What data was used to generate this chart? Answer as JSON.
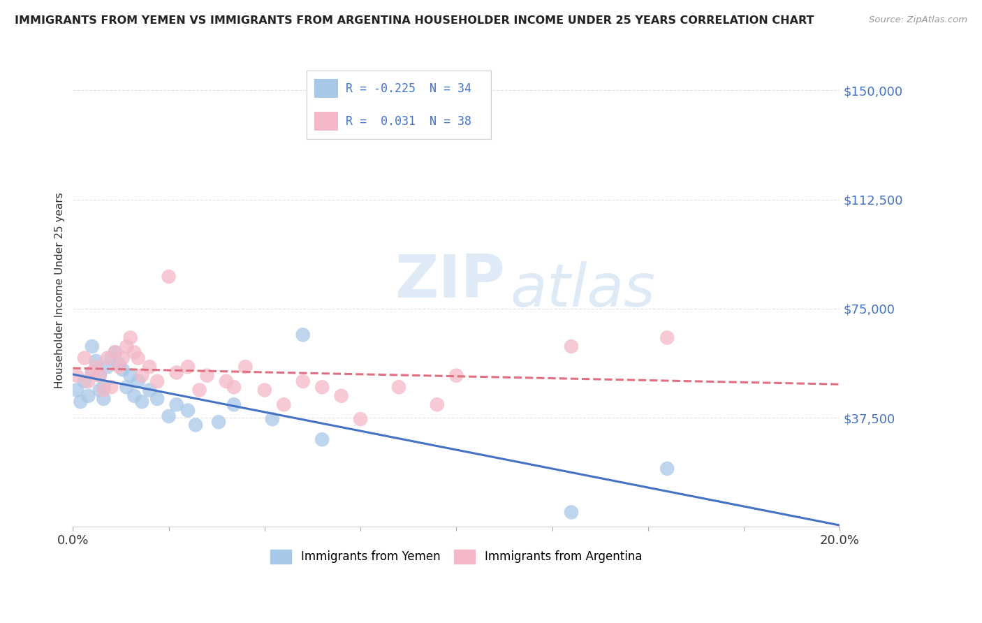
{
  "title": "IMMIGRANTS FROM YEMEN VS IMMIGRANTS FROM ARGENTINA HOUSEHOLDER INCOME UNDER 25 YEARS CORRELATION CHART",
  "source": "Source: ZipAtlas.com",
  "ylabel": "Householder Income Under 25 years",
  "xlim": [
    0.0,
    0.2
  ],
  "ylim": [
    0,
    162500
  ],
  "yticks": [
    0,
    37500,
    75000,
    112500,
    150000
  ],
  "ytick_labels": [
    "",
    "$37,500",
    "$75,000",
    "$112,500",
    "$150,000"
  ],
  "xticks": [
    0.0,
    0.025,
    0.05,
    0.075,
    0.1,
    0.125,
    0.15,
    0.175,
    0.2
  ],
  "xtick_labels": [
    "0.0%",
    "",
    "",
    "",
    "",
    "",
    "",
    "",
    "20.0%"
  ],
  "background_color": "#ffffff",
  "grid_color": "#e0e0e0",
  "yemen_color": "#a8c8e8",
  "argentina_color": "#f4b8c8",
  "yemen_R": -0.225,
  "yemen_N": 34,
  "argentina_R": 0.031,
  "argentina_N": 38,
  "watermark_zip": "ZIP",
  "watermark_atlas": "atlas",
  "yemen_line_color": "#4472c4",
  "argentina_line_color": "#e07080",
  "legend_label_yemen": "Immigrants from Yemen",
  "legend_label_argentina": "Immigrants from Argentina",
  "yemen_x": [
    0.001,
    0.002,
    0.003,
    0.004,
    0.005,
    0.005,
    0.006,
    0.007,
    0.007,
    0.008,
    0.008,
    0.009,
    0.01,
    0.011,
    0.012,
    0.013,
    0.014,
    0.015,
    0.016,
    0.017,
    0.018,
    0.02,
    0.022,
    0.025,
    0.027,
    0.03,
    0.032,
    0.038,
    0.042,
    0.052,
    0.065,
    0.13,
    0.155,
    0.06
  ],
  "yemen_y": [
    47000,
    43000,
    50000,
    45000,
    53000,
    62000,
    57000,
    52000,
    47000,
    48000,
    44000,
    55000,
    58000,
    60000,
    56000,
    54000,
    48000,
    52000,
    45000,
    50000,
    43000,
    47000,
    44000,
    38000,
    42000,
    40000,
    35000,
    36000,
    42000,
    37000,
    30000,
    5000,
    20000,
    66000
  ],
  "argentina_x": [
    0.001,
    0.003,
    0.004,
    0.005,
    0.006,
    0.007,
    0.008,
    0.009,
    0.01,
    0.011,
    0.012,
    0.013,
    0.014,
    0.015,
    0.016,
    0.017,
    0.018,
    0.02,
    0.022,
    0.025,
    0.027,
    0.03,
    0.033,
    0.035,
    0.04,
    0.042,
    0.045,
    0.05,
    0.055,
    0.06,
    0.065,
    0.07,
    0.075,
    0.085,
    0.095,
    0.1,
    0.13,
    0.155
  ],
  "argentina_y": [
    52000,
    58000,
    50000,
    53000,
    55000,
    52000,
    47000,
    58000,
    48000,
    60000,
    55000,
    58000,
    62000,
    65000,
    60000,
    58000,
    52000,
    55000,
    50000,
    86000,
    53000,
    55000,
    47000,
    52000,
    50000,
    48000,
    55000,
    47000,
    42000,
    50000,
    48000,
    45000,
    37000,
    48000,
    42000,
    52000,
    62000,
    65000
  ]
}
